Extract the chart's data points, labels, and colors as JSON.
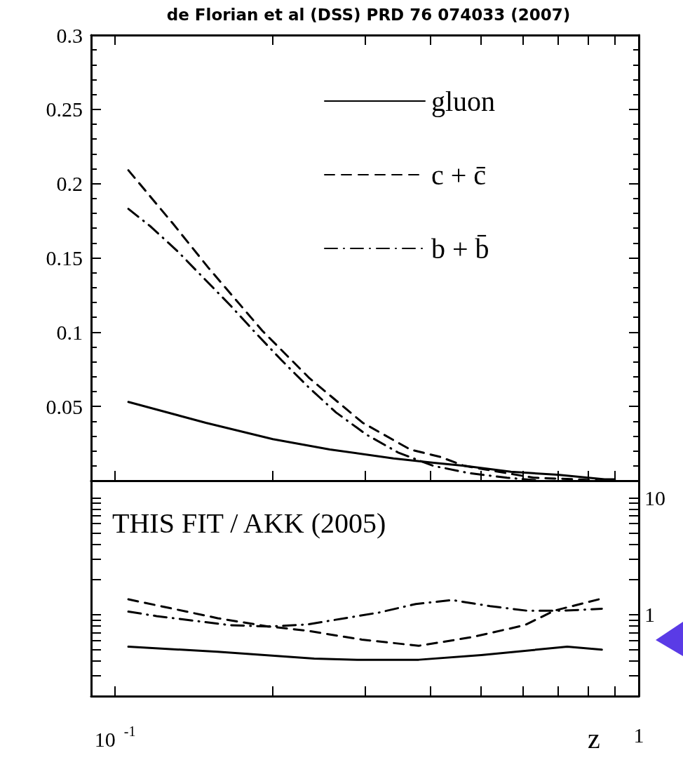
{
  "chart_data": [
    {
      "type": "line",
      "title": "de Florian et al (DSS) PRD 76 074033 (2007)",
      "log": "x",
      "legend": "top right",
      "marker": "none",
      "tick_labels": "y",
      "xlim": [
        0.09,
        1
      ],
      "xticks": [
        {
          "value": 0.1,
          "label": null
        },
        {
          "value": 0.2,
          "label": null
        },
        {
          "value": 0.3,
          "label": null
        },
        {
          "value": 0.4,
          "label": null
        },
        {
          "value": 0.5,
          "label": null
        },
        {
          "value": 0.6,
          "label": null
        },
        {
          "value": 0.7,
          "label": null
        },
        {
          "value": 0.8,
          "label": null
        },
        {
          "value": 0.9,
          "label": null
        },
        {
          "value": 1,
          "label": null
        }
      ],
      "ylim": [
        0,
        0.3
      ],
      "yticks": [
        0.05,
        0.1,
        0.15,
        0.2,
        0.25,
        0.3
      ],
      "series": [
        {
          "name": "gluon",
          "color": "#000000",
          "line_style": "solid",
          "x": [
            0.106,
            0.149,
            0.2,
            0.257,
            0.34,
            0.406,
            0.464,
            0.57,
            0.7,
            0.86,
            0.9
          ],
          "values": [
            0.053,
            0.039,
            0.028,
            0.021,
            0.015,
            0.012,
            0.01,
            0.006,
            0.004,
            0.001,
            0.001
          ]
        },
        {
          "name": "c + c̄",
          "color": "#000000",
          "line_style": "dashed",
          "x": [
            0.106,
            0.129,
            0.151,
            0.191,
            0.235,
            0.297,
            0.366,
            0.418,
            0.464,
            0.54,
            0.63,
            0.75,
            0.85
          ],
          "values": [
            0.209,
            0.173,
            0.143,
            0.101,
            0.069,
            0.039,
            0.021,
            0.016,
            0.01,
            0.006,
            0.002,
            0.001,
            0.0
          ]
        },
        {
          "name": "b + b̄",
          "color": "#000000",
          "line_style": "dashdot",
          "x": [
            0.106,
            0.117,
            0.132,
            0.148,
            0.166,
            0.186,
            0.208,
            0.234,
            0.264,
            0.302,
            0.347,
            0.405,
            0.476,
            0.56,
            0.65
          ],
          "values": [
            0.183,
            0.171,
            0.154,
            0.136,
            0.118,
            0.099,
            0.081,
            0.063,
            0.046,
            0.031,
            0.019,
            0.01,
            0.005,
            0.002,
            0.0
          ]
        }
      ]
    },
    {
      "type": "line",
      "xlabel": "z",
      "log": "xy",
      "marker": "none",
      "annotations": [
        "THIS FIT / AKK (2005)"
      ],
      "xlim": [
        0.09,
        1
      ],
      "xticks": [
        {
          "value": 0.1,
          "label": "10$^{-1}$"
        },
        {
          "value": 0.2,
          "label": null
        },
        {
          "value": 0.3,
          "label": null
        },
        {
          "value": 0.4,
          "label": null
        },
        {
          "value": 0.5,
          "label": null
        },
        {
          "value": 0.6,
          "label": null
        },
        {
          "value": 0.7,
          "label": null
        },
        {
          "value": 0.8,
          "label": null
        },
        {
          "value": 0.9,
          "label": null
        },
        1
      ],
      "ylim": [
        0.2,
        14
      ],
      "yticks": [
        {
          "value": 0.3,
          "label": null
        },
        {
          "value": 0.4,
          "label": null
        },
        {
          "value": 0.5,
          "label": null
        },
        {
          "value": 0.6,
          "label": null
        },
        {
          "value": 0.7,
          "label": null
        },
        {
          "value": 0.8,
          "label": null
        },
        {
          "value": 0.9,
          "label": null
        },
        1,
        {
          "value": 2,
          "label": null
        },
        {
          "value": 3,
          "label": null
        },
        {
          "value": 4,
          "label": null
        },
        {
          "value": 5,
          "label": null
        },
        {
          "value": 6,
          "label": null
        },
        {
          "value": 7,
          "label": null
        },
        {
          "value": 8,
          "label": null
        },
        {
          "value": 9,
          "label": null
        },
        10
      ],
      "series": [
        {
          "color": "#000000",
          "line_style": "solid",
          "x": [
            0.106,
            0.157,
            0.24,
            0.29,
            0.38,
            0.5,
            0.73,
            0.85
          ],
          "values": [
            0.53,
            0.48,
            0.42,
            0.41,
            0.41,
            0.45,
            0.53,
            0.5
          ]
        },
        {
          "color": "#000000",
          "line_style": "dashed",
          "x": [
            0.106,
            0.157,
            0.196,
            0.231,
            0.296,
            0.38,
            0.48,
            0.605,
            0.69,
            0.85
          ],
          "values": [
            1.35,
            0.93,
            0.79,
            0.73,
            0.61,
            0.54,
            0.64,
            0.81,
            1.08,
            1.37
          ]
        },
        {
          "color": "#000000",
          "line_style": "dashdot",
          "x": [
            0.106,
            0.12,
            0.166,
            0.196,
            0.232,
            0.319,
            0.375,
            0.44,
            0.52,
            0.61,
            0.72,
            0.85
          ],
          "values": [
            1.06,
            0.97,
            0.81,
            0.79,
            0.82,
            1.04,
            1.23,
            1.33,
            1.18,
            1.08,
            1.08,
            1.12
          ]
        }
      ]
    }
  ]
}
